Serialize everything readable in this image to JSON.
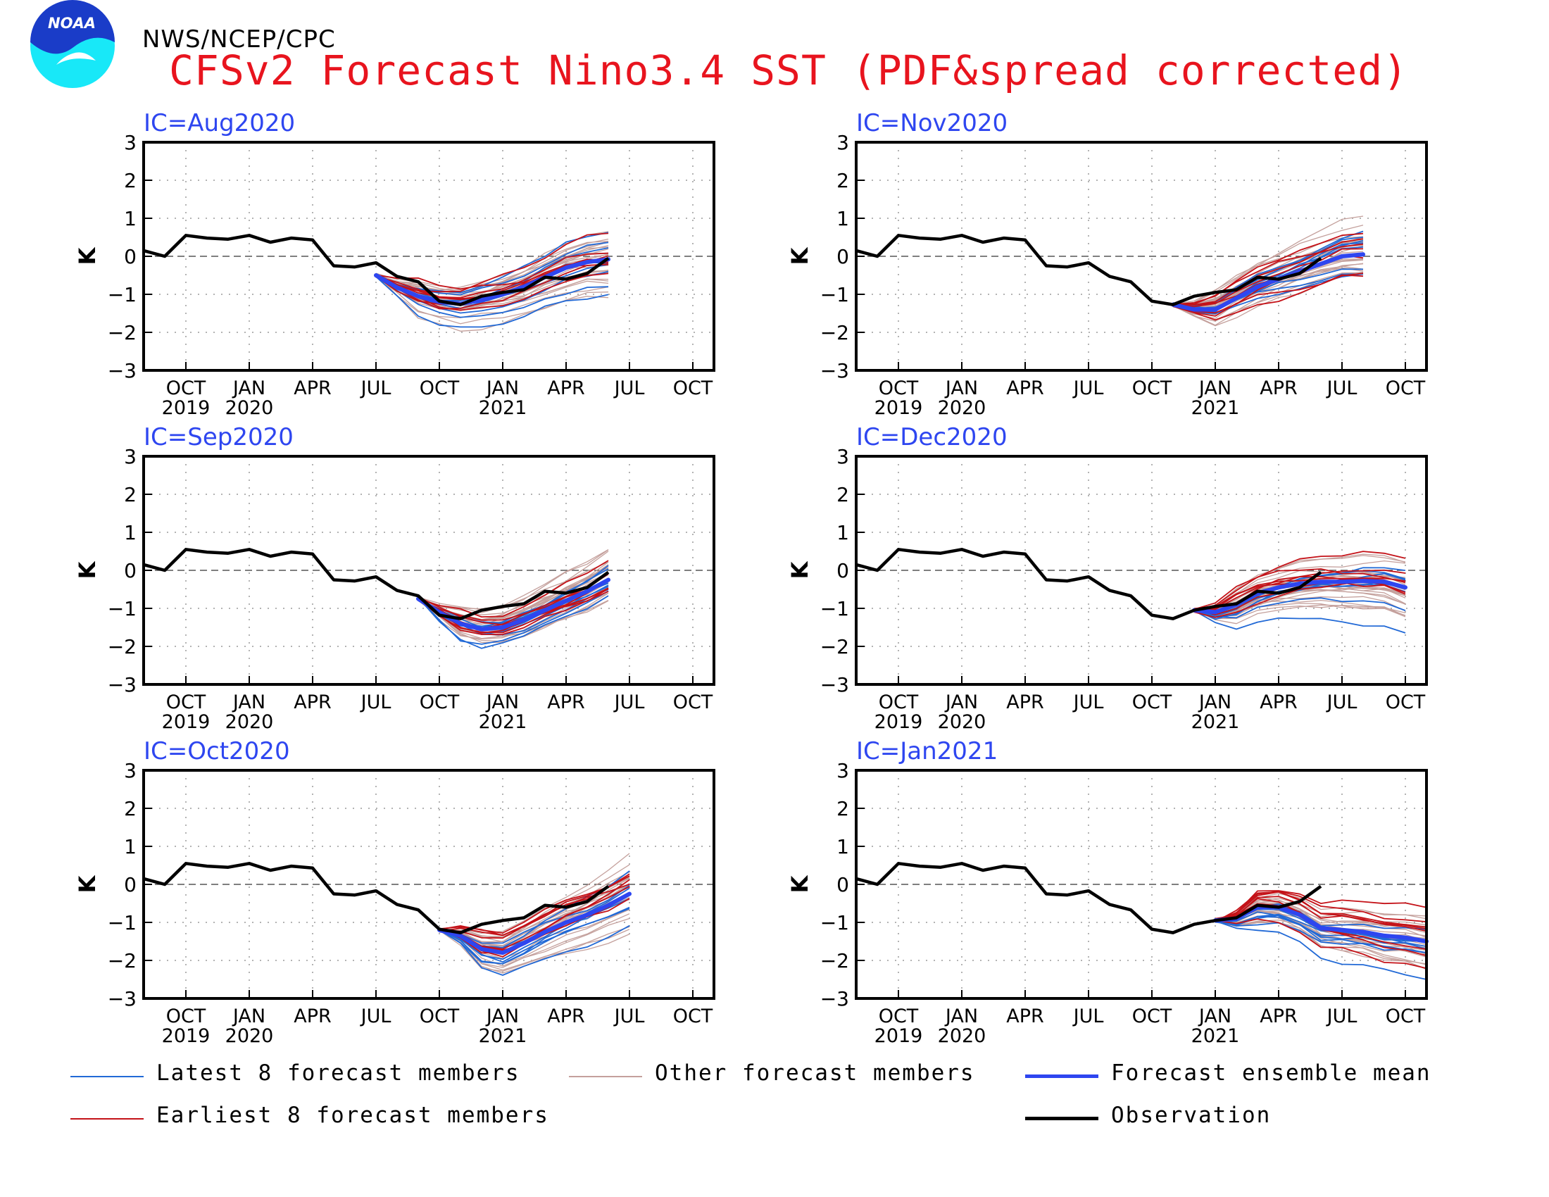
{
  "header": {
    "agency": "NWS/NCEP/CPC",
    "title": "CFSv2 Forecast Nino3.4 SST (PDF&spread corrected)",
    "logo_text": "NOAA"
  },
  "colors": {
    "title": "#e8141e",
    "ic_label": "#2e46f0",
    "latest": "#2169d6",
    "earliest": "#c41218",
    "other": "#c4a09c",
    "mean": "#2e46f0",
    "observation": "#000000"
  },
  "legend": [
    {
      "key": "latest",
      "label": "Latest 8 forecast members"
    },
    {
      "key": "other",
      "label": "Other forecast members"
    },
    {
      "key": "mean",
      "label": "Forecast ensemble mean"
    },
    {
      "key": "earliest",
      "label": "Earliest 8 forecast members"
    },
    {
      "key": "observation",
      "label": "Observation"
    }
  ],
  "chart_data": [
    {
      "type": "line",
      "ic_label": "IC=Aug2020",
      "ylabel": "K",
      "ylim": [
        -3,
        3
      ],
      "y_ticks": [
        "3",
        "2",
        "1",
        "0",
        "−1",
        "−2",
        "−3"
      ],
      "x_ticks": [
        {
          "month": "OCT",
          "year": "2019"
        },
        {
          "month": "JAN",
          "year": "2020"
        },
        {
          "month": "APR",
          "year": ""
        },
        {
          "month": "JUL",
          "year": ""
        },
        {
          "month": "OCT",
          "year": ""
        },
        {
          "month": "JAN",
          "year": "2021"
        },
        {
          "month": "APR",
          "year": ""
        },
        {
          "month": "JUL",
          "year": ""
        },
        {
          "month": "OCT",
          "year": ""
        }
      ],
      "x_start": "Aug 2019",
      "grid": "dotted",
      "observation": [
        0.15,
        0.0,
        0.55,
        0.48,
        0.45,
        0.55,
        0.37,
        0.48,
        0.43,
        -0.25,
        -0.28,
        -0.17,
        -0.53,
        -0.67,
        -1.18,
        -1.27,
        -1.05,
        -0.95,
        -0.88,
        -0.55,
        -0.6,
        -0.45,
        -0.05
      ],
      "ensemble_mean": {
        "start": 11,
        "values": [
          -0.5,
          -0.82,
          -1.05,
          -1.2,
          -1.25,
          -1.15,
          -1.0,
          -0.8,
          -0.55,
          -0.3,
          -0.15,
          -0.08
        ]
      }
    },
    {
      "type": "line",
      "ic_label": "IC=Sep2020",
      "ylabel": "K",
      "ylim": [
        -3,
        3
      ],
      "y_ticks": [
        "3",
        "2",
        "1",
        "0",
        "−1",
        "−2",
        "−3"
      ],
      "x_ticks": [
        {
          "month": "OCT",
          "year": "2019"
        },
        {
          "month": "JAN",
          "year": "2020"
        },
        {
          "month": "APR",
          "year": ""
        },
        {
          "month": "JUL",
          "year": ""
        },
        {
          "month": "OCT",
          "year": ""
        },
        {
          "month": "JAN",
          "year": "2021"
        },
        {
          "month": "APR",
          "year": ""
        },
        {
          "month": "JUL",
          "year": ""
        },
        {
          "month": "OCT",
          "year": ""
        }
      ],
      "x_start": "Aug 2019",
      "grid": "dotted",
      "observation": [
        0.15,
        0.0,
        0.55,
        0.48,
        0.45,
        0.55,
        0.37,
        0.48,
        0.43,
        -0.25,
        -0.28,
        -0.17,
        -0.53,
        -0.67,
        -1.18,
        -1.27,
        -1.05,
        -0.95,
        -0.88,
        -0.55,
        -0.6,
        -0.45,
        -0.05
      ],
      "ensemble_mean": {
        "start": 13,
        "values": [
          -0.75,
          -1.1,
          -1.4,
          -1.55,
          -1.5,
          -1.3,
          -1.05,
          -0.8,
          -0.55,
          -0.25
        ]
      }
    },
    {
      "type": "line",
      "ic_label": "IC=Oct2020",
      "ylabel": "K",
      "ylim": [
        -3,
        3
      ],
      "y_ticks": [
        "3",
        "2",
        "1",
        "0",
        "−1",
        "−2",
        "−3"
      ],
      "x_ticks": [
        {
          "month": "OCT",
          "year": "2019"
        },
        {
          "month": "JAN",
          "year": "2020"
        },
        {
          "month": "APR",
          "year": ""
        },
        {
          "month": "JUL",
          "year": ""
        },
        {
          "month": "OCT",
          "year": ""
        },
        {
          "month": "JAN",
          "year": "2021"
        },
        {
          "month": "APR",
          "year": ""
        },
        {
          "month": "JUL",
          "year": ""
        },
        {
          "month": "OCT",
          "year": ""
        }
      ],
      "x_start": "Aug 2019",
      "grid": "dotted",
      "observation": [
        0.15,
        0.0,
        0.55,
        0.48,
        0.45,
        0.55,
        0.37,
        0.48,
        0.43,
        -0.25,
        -0.28,
        -0.17,
        -0.53,
        -0.67,
        -1.18,
        -1.27,
        -1.05,
        -0.95,
        -0.88,
        -0.55,
        -0.6,
        -0.45,
        -0.05
      ],
      "ensemble_mean": {
        "start": 14,
        "values": [
          -1.2,
          -1.35,
          -1.7,
          -1.8,
          -1.55,
          -1.25,
          -1.0,
          -0.8,
          -0.55,
          -0.25
        ]
      }
    },
    {
      "type": "line",
      "ic_label": "IC=Nov2020",
      "ylabel": "K",
      "ylim": [
        -3,
        3
      ],
      "y_ticks": [
        "3",
        "2",
        "1",
        "0",
        "−1",
        "−2",
        "−3"
      ],
      "x_ticks": [
        {
          "month": "OCT",
          "year": "2019"
        },
        {
          "month": "JAN",
          "year": "2020"
        },
        {
          "month": "APR",
          "year": ""
        },
        {
          "month": "JUL",
          "year": ""
        },
        {
          "month": "OCT",
          "year": ""
        },
        {
          "month": "JAN",
          "year": "2021"
        },
        {
          "month": "APR",
          "year": ""
        },
        {
          "month": "JUL",
          "year": ""
        },
        {
          "month": "OCT",
          "year": ""
        }
      ],
      "x_start": "Aug 2019",
      "grid": "dotted",
      "observation": [
        0.15,
        0.0,
        0.55,
        0.48,
        0.45,
        0.55,
        0.37,
        0.48,
        0.43,
        -0.25,
        -0.28,
        -0.17,
        -0.53,
        -0.67,
        -1.18,
        -1.27,
        -1.05,
        -0.95,
        -0.88,
        -0.55,
        -0.6,
        -0.45,
        -0.05
      ],
      "ensemble_mean": {
        "start": 15,
        "values": [
          -1.27,
          -1.4,
          -1.4,
          -1.1,
          -0.8,
          -0.6,
          -0.4,
          -0.2,
          0.0,
          0.05
        ]
      }
    },
    {
      "type": "line",
      "ic_label": "IC=Dec2020",
      "ylabel": "K",
      "ylim": [
        -3,
        3
      ],
      "y_ticks": [
        "3",
        "2",
        "1",
        "0",
        "−1",
        "−2",
        "−3"
      ],
      "x_ticks": [
        {
          "month": "OCT",
          "year": "2019"
        },
        {
          "month": "JAN",
          "year": "2020"
        },
        {
          "month": "APR",
          "year": ""
        },
        {
          "month": "JUL",
          "year": ""
        },
        {
          "month": "OCT",
          "year": ""
        },
        {
          "month": "JAN",
          "year": "2021"
        },
        {
          "month": "APR",
          "year": ""
        },
        {
          "month": "JUL",
          "year": ""
        },
        {
          "month": "OCT",
          "year": ""
        }
      ],
      "x_start": "Aug 2019",
      "grid": "dotted",
      "observation": [
        0.15,
        0.0,
        0.55,
        0.48,
        0.45,
        0.55,
        0.37,
        0.48,
        0.43,
        -0.25,
        -0.28,
        -0.17,
        -0.53,
        -0.67,
        -1.18,
        -1.27,
        -1.05,
        -0.95,
        -0.88,
        -0.55,
        -0.6,
        -0.45,
        -0.05
      ],
      "ensemble_mean": {
        "start": 16,
        "values": [
          -1.05,
          -1.1,
          -0.9,
          -0.6,
          -0.45,
          -0.35,
          -0.3,
          -0.3,
          -0.28,
          -0.3,
          -0.45
        ]
      }
    },
    {
      "type": "line",
      "ic_label": "IC=Jan2021",
      "ylabel": "K",
      "ylim": [
        -3,
        3
      ],
      "y_ticks": [
        "3",
        "2",
        "1",
        "0",
        "−1",
        "−2",
        "−3"
      ],
      "x_ticks": [
        {
          "month": "OCT",
          "year": "2019"
        },
        {
          "month": "JAN",
          "year": "2020"
        },
        {
          "month": "APR",
          "year": ""
        },
        {
          "month": "JUL",
          "year": ""
        },
        {
          "month": "OCT",
          "year": ""
        },
        {
          "month": "JAN",
          "year": "2021"
        },
        {
          "month": "APR",
          "year": ""
        },
        {
          "month": "JUL",
          "year": ""
        },
        {
          "month": "OCT",
          "year": ""
        }
      ],
      "x_start": "Aug 2019",
      "grid": "dotted",
      "observation": [
        0.15,
        0.0,
        0.55,
        0.48,
        0.45,
        0.55,
        0.37,
        0.48,
        0.43,
        -0.25,
        -0.28,
        -0.17,
        -0.53,
        -0.67,
        -1.18,
        -1.27,
        -1.05,
        -0.95,
        -0.88,
        -0.55,
        -0.6,
        -0.45,
        -0.05
      ],
      "ensemble_mean": {
        "start": 17,
        "values": [
          -0.95,
          -0.9,
          -0.6,
          -0.6,
          -0.8,
          -1.15,
          -1.2,
          -1.25,
          -1.35,
          -1.4,
          -1.5
        ]
      }
    }
  ]
}
